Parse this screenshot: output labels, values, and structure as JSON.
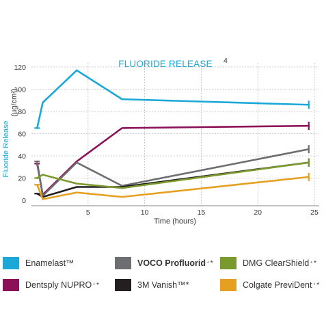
{
  "chart_data": {
    "type": "line",
    "title": "FLUORIDE RELEASE",
    "title_superscript": "4",
    "xlabel": "Time (hours)",
    "ylabel": "Fluoride Release",
    "yunit": "(µg/cm²)",
    "xlim": [
      0,
      25
    ],
    "ylim": [
      0,
      130
    ],
    "xticks": [
      5,
      10,
      15,
      20,
      25
    ],
    "yticks": [
      0,
      20,
      40,
      60,
      80,
      100,
      120
    ],
    "grid": "horizontal dashed",
    "legend_position": "bottom",
    "series": [
      {
        "name": "Enamelast™",
        "color": "#1ba8d8",
        "x": [
          0.5,
          1,
          4,
          8,
          24.5
        ],
        "y": [
          65,
          88,
          117,
          91,
          86
        ]
      },
      {
        "name": "Dentsply NUPRO",
        "color": "#8b1058",
        "x": [
          0.5,
          1,
          4,
          8,
          24.5
        ],
        "y": [
          33,
          5,
          35,
          65,
          67
        ]
      },
      {
        "name": "VOCO Profluorid",
        "color": "#6d6e71",
        "x": [
          0.5,
          1,
          4,
          8,
          24.5
        ],
        "y": [
          35,
          4,
          34,
          13,
          46
        ]
      },
      {
        "name": "3M Vanish™",
        "color": "#231f20",
        "x": [
          0.5,
          1,
          4,
          8,
          24.5
        ],
        "y": [
          6,
          3,
          12,
          12,
          34
        ]
      },
      {
        "name": "DMG ClearShield",
        "color": "#7a9a2e",
        "x": [
          0.5,
          1,
          4,
          8,
          24.5
        ],
        "y": [
          20,
          23,
          15,
          11,
          34
        ]
      },
      {
        "name": "Colgate PreviDent",
        "color": "#e6a021",
        "x": [
          0.5,
          1,
          4,
          8,
          24.5
        ],
        "y": [
          14,
          1,
          7,
          3,
          21
        ]
      }
    ]
  },
  "legend": [
    {
      "label": "Enamelast™",
      "sup": "",
      "mark": "",
      "bold": false,
      "color": "#1ba8d8"
    },
    {
      "label": "VOCO Profluorid",
      "sup": "*",
      "mark": "*",
      "bold": true,
      "color": "#6d6e71"
    },
    {
      "label": "DMG ClearShield",
      "sup": "*",
      "mark": "*",
      "bold": false,
      "color": "#7a9a2e"
    },
    {
      "label": "Dentsply NUPRO",
      "sup": "*",
      "mark": "*",
      "bold": false,
      "color": "#8b1058"
    },
    {
      "label": "3M Vanish™*",
      "sup": "",
      "mark": "",
      "bold": false,
      "color": "#231f20"
    },
    {
      "label": "Colgate PreviDent",
      "sup": "*",
      "mark": "*",
      "bold": false,
      "color": "#e6a021"
    }
  ]
}
